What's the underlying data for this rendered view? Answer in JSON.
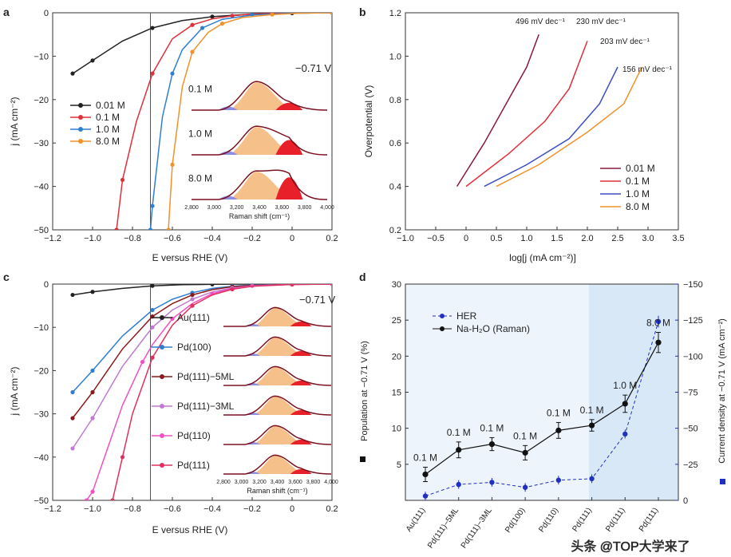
{
  "chart_data": [
    {
      "panel": "a",
      "type": "line",
      "xlabel": "E versus RHE (V)",
      "ylabel": "j (mA cm⁻²)",
      "xlim": [
        -1.2,
        0.2
      ],
      "ylim": [
        -50,
        0
      ],
      "xticks": [
        "−1.2",
        "−1.0",
        "−0.8",
        "−0.6",
        "−0.4",
        "−0.2",
        "0",
        "0.2"
      ],
      "yticks": [
        "0",
        "−10",
        "−20",
        "−30",
        "−40",
        "−50"
      ],
      "ref_line": -0.71,
      "series": [
        {
          "name": "0.01 M",
          "color": "#222222",
          "x": [
            -1.1,
            -1.0,
            -0.85,
            -0.7,
            -0.55,
            -0.4,
            -0.2,
            0.0,
            0.2
          ],
          "y": [
            -14,
            -11,
            -6.5,
            -3.5,
            -1.8,
            -0.9,
            -0.3,
            -0.1,
            0
          ]
        },
        {
          "name": "0.1 M",
          "color": "#e0303a",
          "x": [
            -0.88,
            -0.85,
            -0.78,
            -0.7,
            -0.6,
            -0.5,
            -0.4,
            -0.3,
            -0.2,
            -0.1,
            0.0,
            0.2
          ],
          "y": [
            -50,
            -38.5,
            -25,
            -14,
            -6,
            -2.8,
            -1.4,
            -0.7,
            -0.3,
            -0.15,
            -0.05,
            0
          ]
        },
        {
          "name": "1.0 M",
          "color": "#2f7fd0",
          "x": [
            -0.71,
            -0.7,
            -0.65,
            -0.6,
            -0.55,
            -0.45,
            -0.35,
            -0.2,
            0.0,
            0.2
          ],
          "y": [
            -50,
            -44.5,
            -24,
            -14,
            -8.5,
            -3.5,
            -1.5,
            -0.5,
            -0.1,
            0
          ]
        },
        {
          "name": "8.0 M",
          "color": "#f0922a",
          "x": [
            -0.62,
            -0.6,
            -0.55,
            -0.5,
            -0.42,
            -0.35,
            -0.25,
            -0.1,
            0.05,
            0.2
          ],
          "y": [
            -50,
            -35,
            -17,
            -9,
            -4.5,
            -2.5,
            -1.1,
            -0.4,
            -0.1,
            0
          ]
        }
      ],
      "inset": {
        "title": "−0.71 V",
        "xlabel": "Raman shift (cm⁻¹)",
        "xticks": [
          "2,800",
          "3,000",
          "3,200",
          "3,400",
          "3,600",
          "3,800",
          "4,000"
        ],
        "spectra": [
          "0.1 M",
          "1.0 M",
          "8.0 M"
        ]
      }
    },
    {
      "panel": "b",
      "type": "line",
      "xlabel": "log[j (mA cm⁻²)]",
      "ylabel": "Overpotential (V)",
      "xlim": [
        -1.0,
        3.5
      ],
      "ylim": [
        0.2,
        1.2
      ],
      "xticks": [
        "−1.0",
        "−0.5",
        "0",
        "0.5",
        "1.0",
        "1.5",
        "2.0",
        "2.5",
        "3.0",
        "3.5"
      ],
      "yticks": [
        "0.2",
        "0.4",
        "0.6",
        "0.8",
        "1.0",
        "1.2"
      ],
      "tafel_labels": [
        "496 mV dec⁻¹",
        "230 mV dec⁻¹",
        "203 mV dec⁻¹",
        "156 mV dec⁻¹"
      ],
      "series": [
        {
          "name": "0.01 M",
          "color": "#8b1a3a",
          "x": [
            -0.15,
            0.3,
            0.7,
            1.0,
            1.2
          ],
          "y": [
            0.4,
            0.6,
            0.8,
            0.95,
            1.1
          ]
        },
        {
          "name": "0.1 M",
          "color": "#e0303a",
          "x": [
            0.0,
            0.7,
            1.3,
            1.7,
            2.0
          ],
          "y": [
            0.4,
            0.55,
            0.7,
            0.85,
            1.07
          ]
        },
        {
          "name": "1.0 M",
          "color": "#3a4fc0",
          "x": [
            0.3,
            1.0,
            1.7,
            2.2,
            2.5
          ],
          "y": [
            0.4,
            0.5,
            0.62,
            0.78,
            0.95
          ]
        },
        {
          "name": "8.0 M",
          "color": "#f0922a",
          "x": [
            0.5,
            1.2,
            2.0,
            2.6,
            2.9
          ],
          "y": [
            0.4,
            0.5,
            0.65,
            0.78,
            0.95
          ]
        }
      ]
    },
    {
      "panel": "c",
      "type": "line",
      "xlabel": "E versus RHE (V)",
      "ylabel": "j (mA cm⁻²)",
      "xlim": [
        -1.2,
        0.2
      ],
      "ylim": [
        -50,
        0
      ],
      "xticks": [
        "−1.2",
        "−1.0",
        "−0.8",
        "−0.6",
        "−0.4",
        "−0.2",
        "0",
        "0.2"
      ],
      "yticks": [
        "0",
        "−10",
        "−20",
        "−30",
        "−40",
        "−50"
      ],
      "ref_line": -0.71,
      "series": [
        {
          "name": "Au(111)",
          "color": "#222222",
          "x": [
            -1.1,
            -1.0,
            -0.85,
            -0.7,
            -0.55,
            -0.4,
            -0.2,
            0.0,
            0.2
          ],
          "y": [
            -2.5,
            -1.8,
            -1.0,
            -0.4,
            -0.15,
            -0.05,
            0,
            0,
            0
          ]
        },
        {
          "name": "Pd(100)",
          "color": "#2f7fd0",
          "x": [
            -1.1,
            -1.0,
            -0.85,
            -0.7,
            -0.6,
            -0.5,
            -0.4,
            -0.3,
            -0.2,
            0.0,
            0.2
          ],
          "y": [
            -25,
            -20,
            -12,
            -6,
            -3.5,
            -2,
            -1,
            -0.5,
            -0.2,
            -0.05,
            0
          ]
        },
        {
          "name": "Pd(111)−5ML",
          "color": "#8b1a1a",
          "x": [
            -1.1,
            -1.0,
            -0.85,
            -0.7,
            -0.6,
            -0.5,
            -0.4,
            -0.3,
            -0.2,
            0.0,
            0.2
          ],
          "y": [
            -31,
            -25,
            -15,
            -7.5,
            -4.5,
            -2.5,
            -1.3,
            -0.6,
            -0.3,
            -0.05,
            0
          ]
        },
        {
          "name": "Pd(111)−3ML",
          "color": "#c07ad0",
          "x": [
            -1.1,
            -1.0,
            -0.85,
            -0.7,
            -0.6,
            -0.5,
            -0.4,
            -0.3,
            -0.2,
            0.0,
            0.2
          ],
          "y": [
            -38,
            -31,
            -19,
            -10,
            -6,
            -3.5,
            -1.8,
            -0.9,
            -0.4,
            -0.1,
            0
          ]
        },
        {
          "name": "Pd(110)",
          "color": "#f050c0",
          "x": [
            -1.03,
            -1.0,
            -0.85,
            -0.75,
            -0.7,
            -0.6,
            -0.5,
            -0.4,
            -0.3,
            -0.2,
            0.0,
            0.2
          ],
          "y": [
            -50,
            -48,
            -28,
            -18,
            -14,
            -8,
            -4.5,
            -2.2,
            -1,
            -0.4,
            -0.1,
            0
          ]
        },
        {
          "name": "Pd(111)",
          "color": "#e03060",
          "x": [
            -0.9,
            -0.85,
            -0.8,
            -0.7,
            -0.6,
            -0.5,
            -0.4,
            -0.3,
            -0.2,
            0.0,
            0.2
          ],
          "y": [
            -50,
            -40,
            -30,
            -17,
            -9.5,
            -5,
            -2.5,
            -1.2,
            -0.5,
            -0.1,
            0
          ]
        }
      ],
      "inset": {
        "title": "−0.71 V",
        "xlabel": "Raman shift (cm⁻¹)",
        "xticks": [
          "2,800",
          "3,000",
          "3,200",
          "3,400",
          "3,600",
          "3,800",
          "4,000"
        ]
      }
    },
    {
      "panel": "d",
      "type": "line",
      "ylabel_left": "Population at −0.71 V (%)",
      "ylabel_right": "Current density at −0.71 V (mA cm⁻²)",
      "categories": [
        "Au(111)",
        "Pd(111)−5ML",
        "Pd(111)−3ML",
        "Pd(100)",
        "Pd(110)",
        "Pd(111)",
        "Pd(111)",
        "Pd(111)"
      ],
      "concentration_labels": [
        "0.1 M",
        "0.1 M",
        "0.1 M",
        "0.1 M",
        "0.1 M",
        "0.1 M",
        "1.0 M",
        "8.0 M"
      ],
      "ylim_left": [
        0,
        30
      ],
      "yticks_left": [
        "5",
        "10",
        "15",
        "20",
        "25",
        "30"
      ],
      "ylim_right": [
        0,
        -150
      ],
      "yticks_right": [
        "0",
        "−25",
        "−50",
        "−75",
        "−100",
        "−125",
        "−150"
      ],
      "series": [
        {
          "name": "Na-H₂O (Raman)",
          "color": "#111111",
          "axis": "left",
          "values": [
            3.6,
            7.0,
            7.8,
            6.6,
            9.7,
            10.4,
            13.4,
            21.9
          ],
          "err": [
            1.0,
            1.1,
            0.9,
            1.0,
            1.1,
            0.8,
            1.2,
            1.4
          ]
        },
        {
          "name": "HER",
          "color": "#2030c0",
          "axis": "right",
          "values": [
            -3,
            -11,
            -12.5,
            -9,
            -14,
            -15,
            -46,
            -124
          ],
          "err": [
            3,
            3,
            3,
            3,
            3,
            3,
            3,
            4
          ]
        }
      ]
    }
  ],
  "watermark": "头条 @TOP大学来了"
}
